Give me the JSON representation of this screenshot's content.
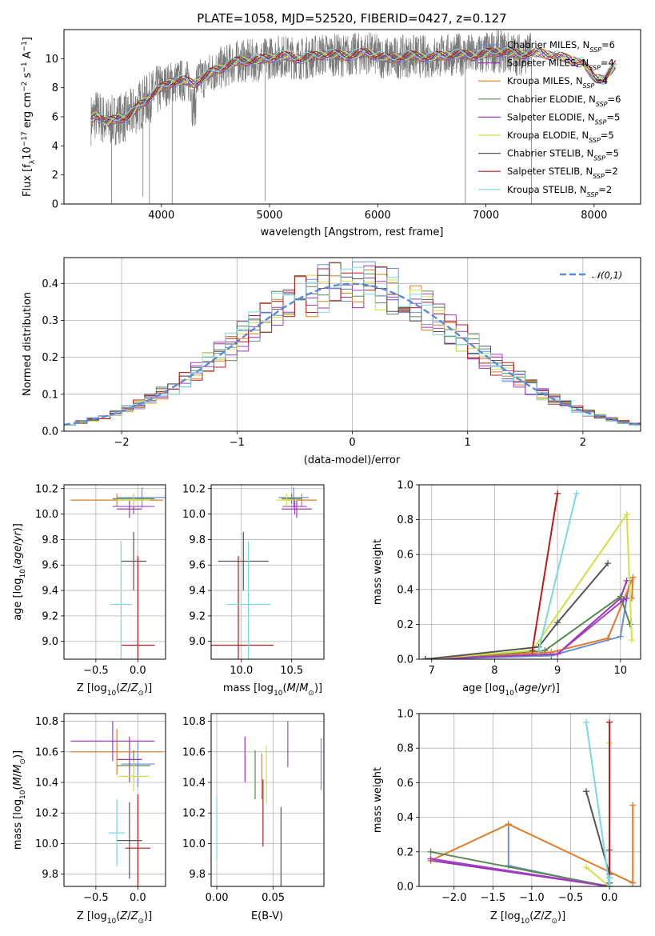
{
  "figure_title": "PLATE=1058, MJD=52520, FIBERID=0427, z=0.127",
  "series": [
    {
      "name": "Chabrier MILES, N_SSP=6",
      "color": "#6c8ed8"
    },
    {
      "name": "Salpeter MILES, N_SSP=4",
      "color": "#9a36b3"
    },
    {
      "name": "Kroupa MILES, N_SSP=4",
      "color": "#e07b26"
    },
    {
      "name": "Chabrier ELODIE, N_SSP=6",
      "color": "#5a8a52"
    },
    {
      "name": "Salpeter ELODIE, N_SSP=5",
      "color": "#a040c0"
    },
    {
      "name": "Kroupa ELODIE, N_SSP=5",
      "color": "#d4e040"
    },
    {
      "name": "Chabrier STELIB, N_SSP=5",
      "color": "#555555"
    },
    {
      "name": "Salpeter STELIB, N_SSP=2",
      "color": "#b81c1c"
    },
    {
      "name": "Kroupa STELIB, N_SSP=2",
      "color": "#7ad8e0"
    }
  ],
  "chart_data": [
    {
      "id": "spectrum",
      "type": "line",
      "xlabel": "wavelength [Angstrom, rest frame]",
      "ylabel": "Flux [f_λ 10^-17 erg cm^-2 s^-1 A^-1]",
      "xlim": [
        3100,
        8430
      ],
      "ylim": [
        0,
        12
      ],
      "xticks": [
        4000,
        5000,
        6000,
        7000,
        8000
      ],
      "yticks": [
        0,
        2,
        4,
        6,
        8,
        10
      ],
      "continuum": {
        "x": [
          3350,
          3400,
          3500,
          3600,
          3700,
          3800,
          3900,
          4000,
          4100,
          4200,
          4300,
          4500,
          4700,
          4900,
          5100,
          5300,
          5500,
          5700,
          5900,
          6100,
          6300,
          6500,
          6700,
          6900,
          7100,
          7300,
          7500,
          7700,
          7900,
          8000,
          8100,
          8200
        ],
        "y": [
          5.8,
          6.2,
          5.6,
          5.9,
          6.0,
          6.8,
          7.4,
          8.0,
          8.4,
          8.5,
          8.3,
          9.2,
          9.8,
          9.9,
          10.2,
          10.0,
          10.3,
          10.2,
          10.4,
          10.0,
          10.2,
          10.1,
          10.3,
          10.2,
          10.5,
          10.3,
          10.4,
          10.1,
          9.7,
          8.7,
          8.6,
          9.6
        ]
      },
      "grid": false,
      "legend": "upper right"
    },
    {
      "id": "residuals",
      "type": "histogram",
      "xlabel": "(data-model)/error",
      "ylabel": "Normed distribution",
      "xlim": [
        -2.5,
        2.5
      ],
      "ylim": [
        0,
        0.47
      ],
      "xticks": [
        -2,
        -1,
        0,
        1,
        2
      ],
      "yticks": [
        0.0,
        0.1,
        0.2,
        0.3,
        0.4
      ],
      "reference": {
        "name": "𝒩(0,1)",
        "color": "#5a8cd6",
        "mean": 0,
        "sigma": 1
      },
      "bin_width": 0.1,
      "grid": true,
      "legend": "upper right"
    },
    {
      "id": "age_vs_Z",
      "type": "errorbar",
      "xlabel": "Z [log10(Z/Z⊙)]",
      "ylabel": "age [log10(age/yr)]",
      "xlim": [
        -0.88,
        0.33
      ],
      "ylim": [
        8.86,
        10.23
      ],
      "xticks": [
        -0.5,
        0.0
      ],
      "yticks": [
        9.0,
        9.2,
        9.4,
        9.6,
        9.8,
        10.0,
        10.2
      ],
      "points": [
        {
          "s": 0,
          "x": 0.05,
          "y": 10.13,
          "xerr": 0.3,
          "yerr": 0.08
        },
        {
          "s": 1,
          "x": -0.1,
          "y": 10.04,
          "xerr": 0.15,
          "yerr": 0.07
        },
        {
          "s": 2,
          "x": -0.25,
          "y": 10.11,
          "xerr": 0.55,
          "yerr": 0.05
        },
        {
          "s": 3,
          "x": -0.05,
          "y": 10.12,
          "xerr": 0.25,
          "yerr": 0.04
        },
        {
          "s": 4,
          "x": -0.05,
          "y": 10.06,
          "xerr": 0.25,
          "yerr": 0.06
        },
        {
          "s": 5,
          "x": -0.05,
          "y": 10.11,
          "xerr": 0.2,
          "yerr": 0.05
        },
        {
          "s": 6,
          "x": -0.05,
          "y": 9.63,
          "xerr": 0.15,
          "yerr": 0.23
        },
        {
          "s": 7,
          "x": 0.0,
          "y": 8.97,
          "xerr": 0.2,
          "yerr": 0.7
        },
        {
          "s": 8,
          "x": -0.2,
          "y": 9.29,
          "xerr": 0.13,
          "yerr": 0.5
        }
      ]
    },
    {
      "id": "age_vs_mass",
      "type": "errorbar",
      "xlabel": "mass [log10(M/M⊙)]",
      "ylabel": "",
      "xlim": [
        9.7,
        10.82
      ],
      "ylim": [
        8.86,
        10.23
      ],
      "xticks": [
        10.0,
        10.5
      ],
      "yticks": [
        9.0,
        9.2,
        9.4,
        9.6,
        9.8,
        10.0,
        10.2
      ],
      "points": [
        {
          "s": 0,
          "x": 10.52,
          "y": 10.13,
          "xerr": 0.15,
          "yerr": 0.08
        },
        {
          "s": 1,
          "x": 10.55,
          "y": 10.04,
          "xerr": 0.15,
          "yerr": 0.07
        },
        {
          "s": 2,
          "x": 10.6,
          "y": 10.11,
          "xerr": 0.15,
          "yerr": 0.05
        },
        {
          "s": 3,
          "x": 10.5,
          "y": 10.12,
          "xerr": 0.1,
          "yerr": 0.04
        },
        {
          "s": 4,
          "x": 10.53,
          "y": 10.06,
          "xerr": 0.12,
          "yerr": 0.06
        },
        {
          "s": 5,
          "x": 10.45,
          "y": 10.11,
          "xerr": 0.1,
          "yerr": 0.05
        },
        {
          "s": 6,
          "x": 10.02,
          "y": 9.63,
          "xerr": 0.25,
          "yerr": 0.23
        },
        {
          "s": 7,
          "x": 9.97,
          "y": 8.97,
          "xerr": 0.35,
          "yerr": 0.7
        },
        {
          "s": 8,
          "x": 10.07,
          "y": 9.29,
          "xerr": 0.22,
          "yerr": 0.5
        }
      ]
    },
    {
      "id": "massweight_vs_age",
      "type": "line",
      "xlabel": "age [log10(age/yr)]",
      "ylabel": "mass weight",
      "xlim": [
        6.8,
        10.32
      ],
      "ylim": [
        0,
        1
      ],
      "xticks": [
        7,
        8,
        9,
        10
      ],
      "yticks": [
        0.0,
        0.2,
        0.4,
        0.6,
        0.8,
        1.0
      ],
      "lines": [
        {
          "s": 0,
          "x": [
            6.9,
            8.9,
            10.0,
            10.1,
            10.15
          ],
          "y": [
            0.0,
            0.02,
            0.13,
            0.35,
            0.45
          ]
        },
        {
          "s": 1,
          "x": [
            6.9,
            9.0,
            10.0,
            10.1
          ],
          "y": [
            0.0,
            0.03,
            0.35,
            0.45
          ]
        },
        {
          "s": 2,
          "x": [
            6.9,
            8.9,
            9.8,
            10.2,
            10.18
          ],
          "y": [
            0.0,
            0.04,
            0.12,
            0.47,
            0.35
          ]
        },
        {
          "s": 3,
          "x": [
            6.9,
            8.8,
            10.0,
            10.15
          ],
          "y": [
            0.0,
            0.05,
            0.36,
            0.2
          ]
        },
        {
          "s": 4,
          "x": [
            6.9,
            9.0,
            10.05,
            10.1
          ],
          "y": [
            0.0,
            0.03,
            0.34,
            0.35
          ]
        },
        {
          "s": 5,
          "x": [
            6.9,
            8.6,
            10.1,
            10.18
          ],
          "y": [
            0.0,
            0.05,
            0.83,
            0.11
          ]
        },
        {
          "s": 6,
          "x": [
            6.9,
            8.7,
            9.0,
            9.8
          ],
          "y": [
            0.0,
            0.07,
            0.21,
            0.55
          ]
        },
        {
          "s": 7,
          "x": [
            8.6,
            9.0
          ],
          "y": [
            0.05,
            0.95
          ]
        },
        {
          "s": 8,
          "x": [
            8.7,
            9.3
          ],
          "y": [
            0.05,
            0.95
          ]
        }
      ]
    },
    {
      "id": "mass_vs_Z",
      "type": "errorbar",
      "xlabel": "Z [log10(Z/Z⊙)]",
      "ylabel": "mass [log10(M/M⊙)]",
      "xlim": [
        -0.88,
        0.33
      ],
      "ylim": [
        9.72,
        10.85
      ],
      "xticks": [
        -0.5,
        0.0
      ],
      "yticks": [
        9.8,
        10.0,
        10.2,
        10.4,
        10.6,
        10.8
      ],
      "points": [
        {
          "s": 0,
          "x": 0.0,
          "y": 10.52,
          "xerr": 0.2,
          "yerr": 0.15
        },
        {
          "s": 1,
          "x": -0.1,
          "y": 10.55,
          "xerr": 0.15,
          "yerr": 0.15
        },
        {
          "s": 2,
          "x": -0.25,
          "y": 10.6,
          "xerr": 0.55,
          "yerr": 0.15
        },
        {
          "s": 3,
          "x": -0.05,
          "y": 10.51,
          "xerr": 0.2,
          "yerr": 0.1
        },
        {
          "s": 4,
          "x": -0.3,
          "y": 10.67,
          "xerr": 0.5,
          "yerr": 0.13
        },
        {
          "s": 5,
          "x": -0.05,
          "y": 10.44,
          "xerr": 0.18,
          "yerr": 0.1
        },
        {
          "s": 6,
          "x": -0.1,
          "y": 10.02,
          "xerr": 0.15,
          "yerr": 0.25
        },
        {
          "s": 7,
          "x": 0.0,
          "y": 9.97,
          "xerr": 0.15,
          "yerr": 0.35
        },
        {
          "s": 8,
          "x": -0.25,
          "y": 10.07,
          "xerr": 0.1,
          "yerr": 0.22
        }
      ]
    },
    {
      "id": "mass_vs_EBV",
      "type": "errorbar",
      "xlabel": "E(B-V)",
      "ylabel": "",
      "xlim": [
        -0.005,
        0.095
      ],
      "ylim": [
        9.72,
        10.85
      ],
      "xticks": [
        0.0,
        0.05
      ],
      "yticks": [
        9.8,
        10.0,
        10.2,
        10.4,
        10.6,
        10.8
      ],
      "points": [
        {
          "s": 0,
          "x": 0.0925,
          "y": 10.52,
          "yerr": 0.17
        },
        {
          "s": 1,
          "x": 0.025,
          "y": 10.55,
          "yerr": 0.15
        },
        {
          "s": 2,
          "x": 0.04,
          "y": 10.44,
          "yerr": 0.15
        },
        {
          "s": 3,
          "x": 0.034,
          "y": 10.45,
          "yerr": 0.16
        },
        {
          "s": 4,
          "x": 0.063,
          "y": 10.65,
          "yerr": 0.15
        },
        {
          "s": 5,
          "x": 0.044,
          "y": 10.45,
          "yerr": 0.19
        },
        {
          "s": 6,
          "x": 0.057,
          "y": 9.98,
          "yerr": 0.26
        },
        {
          "s": 7,
          "x": 0.041,
          "y": 10.2,
          "yerr": 0.22
        },
        {
          "s": 8,
          "x": 0.0,
          "y": 10.1,
          "yerr": 0.21
        }
      ]
    },
    {
      "id": "massweight_vs_Z",
      "type": "line",
      "xlabel": "Z [log10(Z/Z⊙)]",
      "ylabel": "mass weight",
      "xlim": [
        -2.45,
        0.4
      ],
      "ylim": [
        0,
        1
      ],
      "xticks": [
        -2.0,
        -1.5,
        -1.0,
        -0.5,
        0.0
      ],
      "yticks": [
        0.0,
        0.2,
        0.4,
        0.6,
        0.8,
        1.0
      ],
      "lines": [
        {
          "s": 0,
          "x": [
            -1.3,
            -1.3,
            -0.05,
            -0.0
          ],
          "y": [
            0.36,
            0.12,
            0.0,
            0.02
          ]
        },
        {
          "s": 1,
          "x": [
            -2.3,
            0.0,
            0.0
          ],
          "y": [
            0.15,
            0.0,
            0.02
          ]
        },
        {
          "s": 2,
          "x": [
            -2.3,
            -1.3,
            0.3,
            0.3
          ],
          "y": [
            0.15,
            0.36,
            0.02,
            0.47
          ]
        },
        {
          "s": 3,
          "x": [
            -2.3,
            0.0,
            0.0
          ],
          "y": [
            0.2,
            0.0,
            0.05
          ]
        },
        {
          "s": 4,
          "x": [
            -2.3,
            0.0
          ],
          "y": [
            0.16,
            0.0
          ]
        },
        {
          "s": 5,
          "x": [
            -0.3,
            0.0,
            0.0
          ],
          "y": [
            0.11,
            0.0,
            0.83
          ]
        },
        {
          "s": 6,
          "x": [
            -0.3,
            0.0,
            0.0
          ],
          "y": [
            0.55,
            0.07,
            0.21
          ]
        },
        {
          "s": 7,
          "x": [
            0.0,
            0.0
          ],
          "y": [
            0.05,
            0.95
          ]
        },
        {
          "s": 8,
          "x": [
            -0.3,
            0.0,
            0.0
          ],
          "y": [
            0.95,
            0.0,
            0.05
          ]
        }
      ]
    }
  ]
}
